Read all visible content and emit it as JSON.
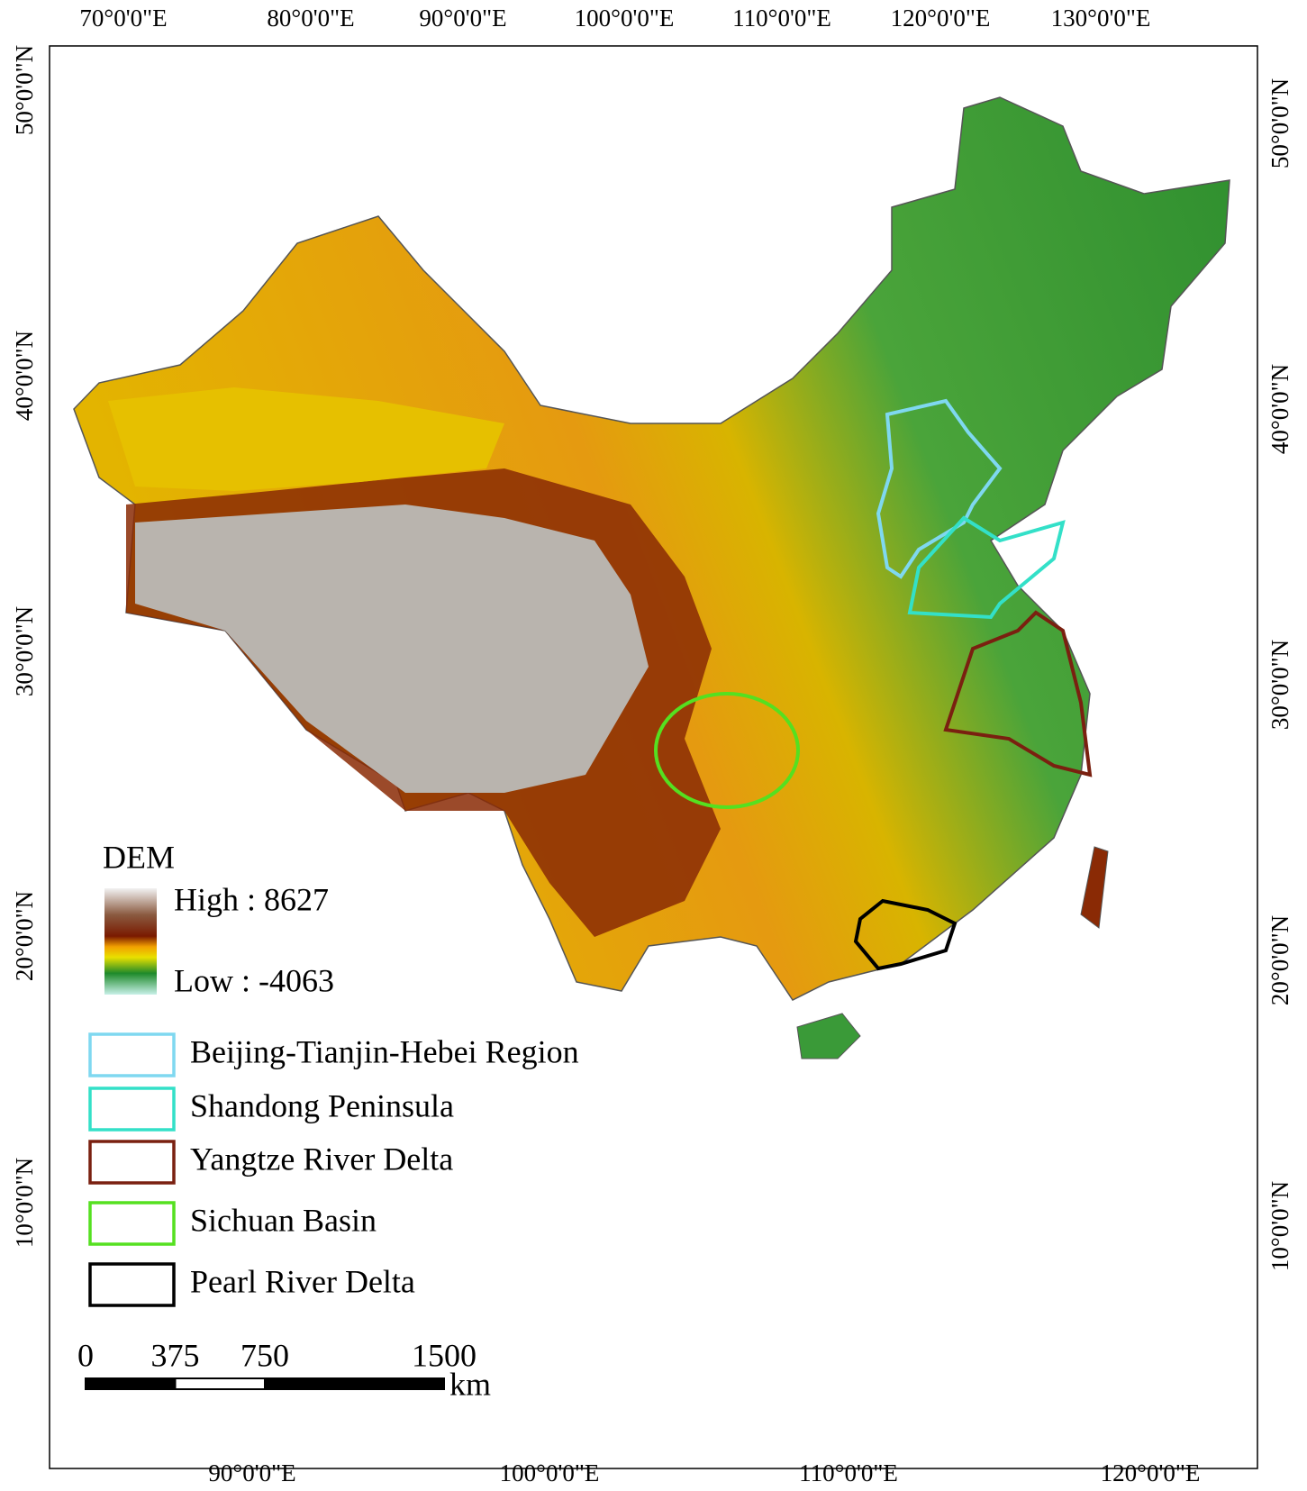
{
  "map": {
    "top_labels": [
      "70°0'0\"E",
      "80°0'0\"E",
      "90°0'0\"E",
      "100°0'0\"E",
      "110°0'0\"E",
      "120°0'0\"E",
      "130°0'0\"E"
    ],
    "bottom_labels": [
      "90°0'0\"E",
      "100°0'0\"E",
      "110°0'0\"E",
      "120°0'0\"E"
    ],
    "left_labels": [
      "50°0'0\"N",
      "40°0'0\"N",
      "30°0'0\"N",
      "20°0'0\"N",
      "10°0'0\"N"
    ],
    "right_labels": [
      "50°0'0\"N",
      "40°0'0\"N",
      "30°0'0\"N",
      "20°0'0\"N",
      "10°0'0\"N"
    ],
    "legend": {
      "title": "DEM",
      "high": "High : 8627",
      "low": "Low : -4063",
      "regions": [
        {
          "name": "Beijing-Tianjin-Hebei Region",
          "color": "#7fd8f0"
        },
        {
          "name": "Shandong Peninsula",
          "color": "#33e0c8"
        },
        {
          "name": "Yangtze River Delta",
          "color": "#7a2010"
        },
        {
          "name": "Sichuan Basin",
          "color": "#55e020"
        },
        {
          "name": "Pearl River Delta",
          "color": "#000000"
        }
      ]
    },
    "scale_bar": {
      "ticks": [
        0,
        375,
        750,
        1500
      ],
      "unit": "km"
    }
  }
}
